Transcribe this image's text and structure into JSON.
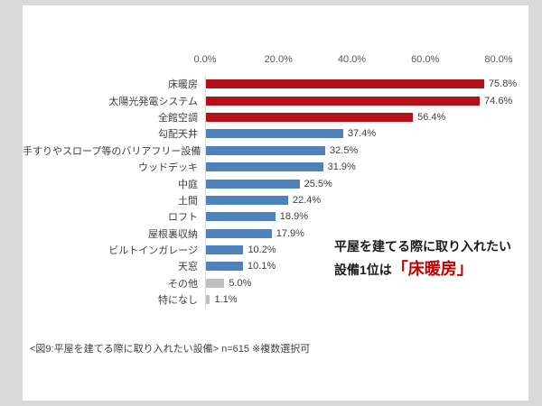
{
  "chart_data": {
    "type": "bar",
    "orientation": "horizontal",
    "title": "",
    "xlabel": "",
    "ylabel": "",
    "x_axis": {
      "ticks": [
        "0.0%",
        "20.0%",
        "40.0%",
        "60.0%",
        "80.0%"
      ],
      "min": 0,
      "max": 80
    },
    "grid": false,
    "legend": false,
    "colors": {
      "red": "#b41118",
      "blue": "#4f81bd",
      "gray": "#bfbfbf"
    },
    "series": [
      {
        "label": "床暖房",
        "value": 75.8,
        "display": "75.8%",
        "color_key": "red"
      },
      {
        "label": "太陽光発電システム",
        "value": 74.6,
        "display": "74.6%",
        "color_key": "red"
      },
      {
        "label": "全館空調",
        "value": 56.4,
        "display": "56.4%",
        "color_key": "red"
      },
      {
        "label": "勾配天井",
        "value": 37.4,
        "display": "37.4%",
        "color_key": "blue"
      },
      {
        "label": "手すりやスロープ等のバリアフリー設備",
        "value": 32.5,
        "display": "32.5%",
        "color_key": "blue"
      },
      {
        "label": "ウッドデッキ",
        "value": 31.9,
        "display": "31.9%",
        "color_key": "blue"
      },
      {
        "label": "中庭",
        "value": 25.5,
        "display": "25.5%",
        "color_key": "blue"
      },
      {
        "label": "土間",
        "value": 22.4,
        "display": "22.4%",
        "color_key": "blue"
      },
      {
        "label": "ロフト",
        "value": 18.9,
        "display": "18.9%",
        "color_key": "blue"
      },
      {
        "label": "屋根裏収納",
        "value": 17.9,
        "display": "17.9%",
        "color_key": "blue"
      },
      {
        "label": "ビルトインガレージ",
        "value": 10.2,
        "display": "10.2%",
        "color_key": "blue"
      },
      {
        "label": "天窓",
        "value": 10.1,
        "display": "10.1%",
        "color_key": "blue"
      },
      {
        "label": "その他",
        "value": 5.0,
        "display": "5.0%",
        "color_key": "gray"
      },
      {
        "label": "特になし",
        "value": 1.1,
        "display": "1.1%",
        "color_key": "gray"
      }
    ]
  },
  "annotation": {
    "line1": "平屋を建てる際に取り入れたい",
    "line2_prefix": "設備1位は",
    "highlight": "「床暖房」",
    "highlight_color": "#c00000"
  },
  "caption": "<図9:平屋を建てる際に取り入れたい設備> n=615 ※複数選択可"
}
